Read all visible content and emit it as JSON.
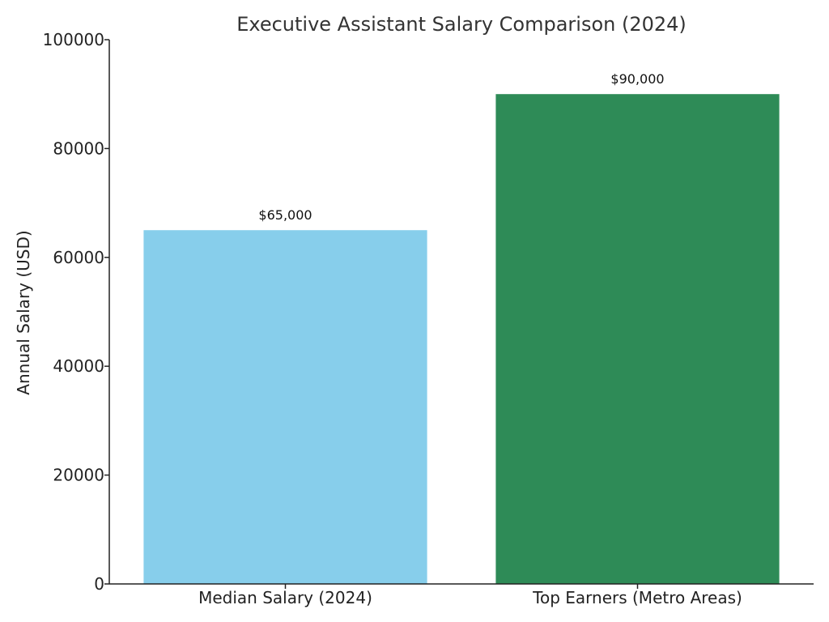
{
  "chart_data": {
    "type": "bar",
    "title": "Executive Assistant Salary Comparison (2024)",
    "xlabel": "",
    "ylabel": "Annual Salary (USD)",
    "categories": [
      "Median Salary (2024)",
      "Top Earners (Metro Areas)"
    ],
    "values": [
      65000,
      90000
    ],
    "data_labels": [
      "$65,000",
      "$90,000"
    ],
    "colors": [
      "#87CEEB",
      "#2E8B57"
    ],
    "ylim": [
      0,
      100000
    ],
    "yticks": [
      0,
      20000,
      40000,
      60000,
      80000,
      100000
    ],
    "ytick_labels": [
      "0",
      "20000",
      "40000",
      "60000",
      "80000",
      "100000"
    ],
    "grid": false,
    "legend": "none"
  }
}
